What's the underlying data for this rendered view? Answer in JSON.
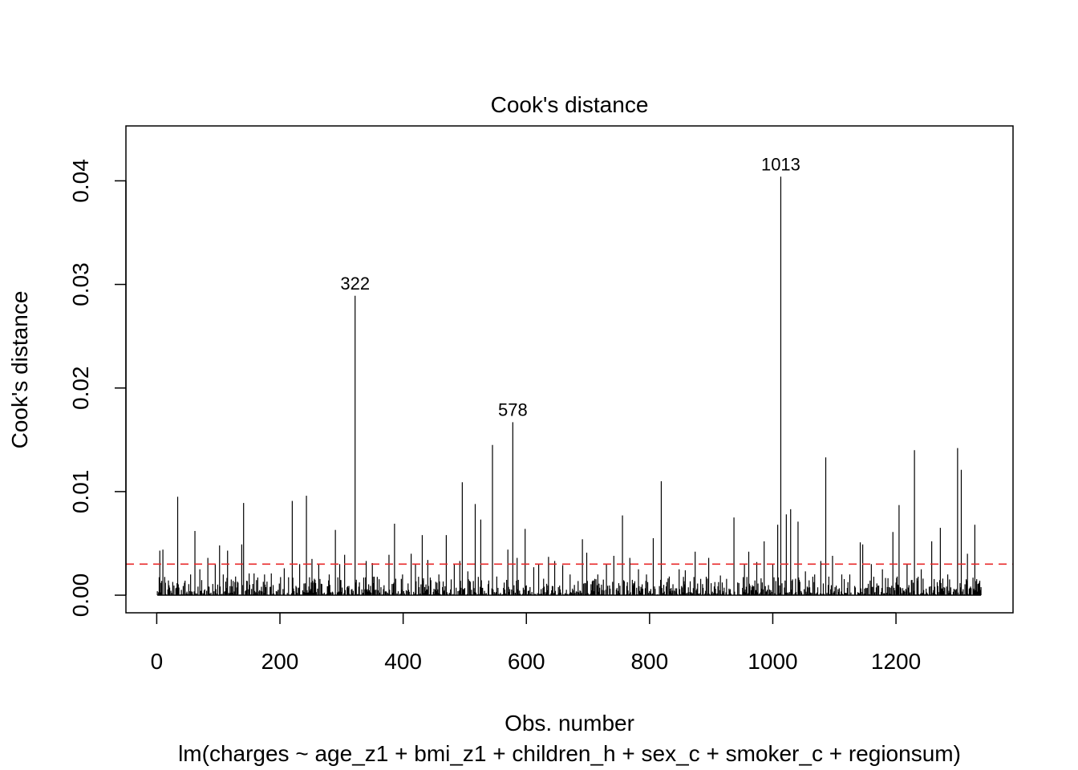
{
  "chart_data": {
    "type": "bar",
    "title": "Cook's distance",
    "xlabel": "Obs. number",
    "subtitle": "lm(charges ~ age_z1 + bmi_z1 + children_h + sex_c + smoker_c + regionsum)",
    "ylabel": "Cook's distance",
    "x_range": [
      1,
      1338
    ],
    "xlim": [
      -50,
      1390
    ],
    "ylim": [
      -0.0017,
      0.0453
    ],
    "x_ticks": [
      "0",
      "200",
      "400",
      "600",
      "800",
      "1000",
      "1200"
    ],
    "x_tick_values": [
      0,
      200,
      400,
      600,
      800,
      1000,
      1200
    ],
    "y_ticks": [
      "0.00",
      "0.01",
      "0.02",
      "0.03",
      "0.04"
    ],
    "y_tick_values": [
      0,
      0.01,
      0.02,
      0.03,
      0.04
    ],
    "reference_line": {
      "y": 0.003,
      "style": "dashed",
      "color": "#e8282a"
    },
    "labeled_points": [
      {
        "label": "322",
        "x": 322,
        "y": 0.0289
      },
      {
        "label": "578",
        "x": 578,
        "y": 0.0167
      },
      {
        "label": "1013",
        "x": 1013,
        "y": 0.0404
      }
    ],
    "points": [
      {
        "x": 5,
        "y": 0.0043
      },
      {
        "x": 10,
        "y": 0.0044
      },
      {
        "x": 14,
        "y": 0.0012
      },
      {
        "x": 34,
        "y": 0.0095
      },
      {
        "x": 46,
        "y": 0.0014
      },
      {
        "x": 55,
        "y": 0.002
      },
      {
        "x": 62,
        "y": 0.0062
      },
      {
        "x": 70,
        "y": 0.0025
      },
      {
        "x": 83,
        "y": 0.0036
      },
      {
        "x": 95,
        "y": 0.003
      },
      {
        "x": 102,
        "y": 0.0048
      },
      {
        "x": 108,
        "y": 0.002
      },
      {
        "x": 115,
        "y": 0.0043
      },
      {
        "x": 128,
        "y": 0.0018
      },
      {
        "x": 138,
        "y": 0.0049
      },
      {
        "x": 141,
        "y": 0.0089
      },
      {
        "x": 150,
        "y": 0.0021
      },
      {
        "x": 158,
        "y": 0.0021
      },
      {
        "x": 175,
        "y": 0.002
      },
      {
        "x": 186,
        "y": 0.0021
      },
      {
        "x": 207,
        "y": 0.0026
      },
      {
        "x": 220,
        "y": 0.0091
      },
      {
        "x": 232,
        "y": 0.003
      },
      {
        "x": 243,
        "y": 0.0096
      },
      {
        "x": 252,
        "y": 0.0035
      },
      {
        "x": 263,
        "y": 0.003
      },
      {
        "x": 280,
        "y": 0.002
      },
      {
        "x": 290,
        "y": 0.0063
      },
      {
        "x": 297,
        "y": 0.003
      },
      {
        "x": 305,
        "y": 0.0039
      },
      {
        "x": 322,
        "y": 0.0289
      },
      {
        "x": 340,
        "y": 0.0033
      },
      {
        "x": 350,
        "y": 0.0031
      },
      {
        "x": 377,
        "y": 0.0039
      },
      {
        "x": 386,
        "y": 0.0069
      },
      {
        "x": 399,
        "y": 0.002
      },
      {
        "x": 413,
        "y": 0.004
      },
      {
        "x": 420,
        "y": 0.003
      },
      {
        "x": 431,
        "y": 0.0058
      },
      {
        "x": 440,
        "y": 0.0034
      },
      {
        "x": 458,
        "y": 0.002
      },
      {
        "x": 470,
        "y": 0.0058
      },
      {
        "x": 483,
        "y": 0.003
      },
      {
        "x": 492,
        "y": 0.0033
      },
      {
        "x": 496,
        "y": 0.0109
      },
      {
        "x": 505,
        "y": 0.0023
      },
      {
        "x": 517,
        "y": 0.0088
      },
      {
        "x": 526,
        "y": 0.0073
      },
      {
        "x": 545,
        "y": 0.0145
      },
      {
        "x": 552,
        "y": 0.0018
      },
      {
        "x": 570,
        "y": 0.0044
      },
      {
        "x": 578,
        "y": 0.0167
      },
      {
        "x": 585,
        "y": 0.0036
      },
      {
        "x": 598,
        "y": 0.0064
      },
      {
        "x": 612,
        "y": 0.0027
      },
      {
        "x": 620,
        "y": 0.003
      },
      {
        "x": 636,
        "y": 0.0037
      },
      {
        "x": 646,
        "y": 0.0033
      },
      {
        "x": 659,
        "y": 0.0029
      },
      {
        "x": 671,
        "y": 0.002
      },
      {
        "x": 691,
        "y": 0.0054
      },
      {
        "x": 698,
        "y": 0.0041
      },
      {
        "x": 716,
        "y": 0.002
      },
      {
        "x": 730,
        "y": 0.003
      },
      {
        "x": 742,
        "y": 0.0038
      },
      {
        "x": 756,
        "y": 0.0077
      },
      {
        "x": 768,
        "y": 0.0036
      },
      {
        "x": 782,
        "y": 0.0025
      },
      {
        "x": 795,
        "y": 0.002
      },
      {
        "x": 806,
        "y": 0.0055
      },
      {
        "x": 819,
        "y": 0.011
      },
      {
        "x": 832,
        "y": 0.0018
      },
      {
        "x": 848,
        "y": 0.0025
      },
      {
        "x": 858,
        "y": 0.0024
      },
      {
        "x": 874,
        "y": 0.0042
      },
      {
        "x": 896,
        "y": 0.0036
      },
      {
        "x": 915,
        "y": 0.0019
      },
      {
        "x": 937,
        "y": 0.0075
      },
      {
        "x": 954,
        "y": 0.003
      },
      {
        "x": 961,
        "y": 0.0042
      },
      {
        "x": 974,
        "y": 0.0032
      },
      {
        "x": 986,
        "y": 0.0052
      },
      {
        "x": 1000,
        "y": 0.003
      },
      {
        "x": 1008,
        "y": 0.0068
      },
      {
        "x": 1013,
        "y": 0.0404
      },
      {
        "x": 1022,
        "y": 0.0078
      },
      {
        "x": 1029,
        "y": 0.0083
      },
      {
        "x": 1041,
        "y": 0.0071
      },
      {
        "x": 1053,
        "y": 0.0023
      },
      {
        "x": 1068,
        "y": 0.002
      },
      {
        "x": 1078,
        "y": 0.0033
      },
      {
        "x": 1086,
        "y": 0.0133
      },
      {
        "x": 1097,
        "y": 0.0038
      },
      {
        "x": 1112,
        "y": 0.002
      },
      {
        "x": 1125,
        "y": 0.002
      },
      {
        "x": 1142,
        "y": 0.0051
      },
      {
        "x": 1146,
        "y": 0.0049
      },
      {
        "x": 1160,
        "y": 0.003
      },
      {
        "x": 1178,
        "y": 0.0025
      },
      {
        "x": 1195,
        "y": 0.0061
      },
      {
        "x": 1205,
        "y": 0.0087
      },
      {
        "x": 1218,
        "y": 0.003
      },
      {
        "x": 1230,
        "y": 0.014
      },
      {
        "x": 1241,
        "y": 0.0025
      },
      {
        "x": 1258,
        "y": 0.0052
      },
      {
        "x": 1272,
        "y": 0.0065
      },
      {
        "x": 1284,
        "y": 0.002
      },
      {
        "x": 1300,
        "y": 0.0142
      },
      {
        "x": 1306,
        "y": 0.0121
      },
      {
        "x": 1316,
        "y": 0.004
      },
      {
        "x": 1328,
        "y": 0.0068
      },
      {
        "x": 1336,
        "y": 0.0014
      }
    ],
    "baseline_noise": {
      "count": 1338,
      "max": 0.0018
    },
    "grid": false,
    "legend": "none"
  }
}
